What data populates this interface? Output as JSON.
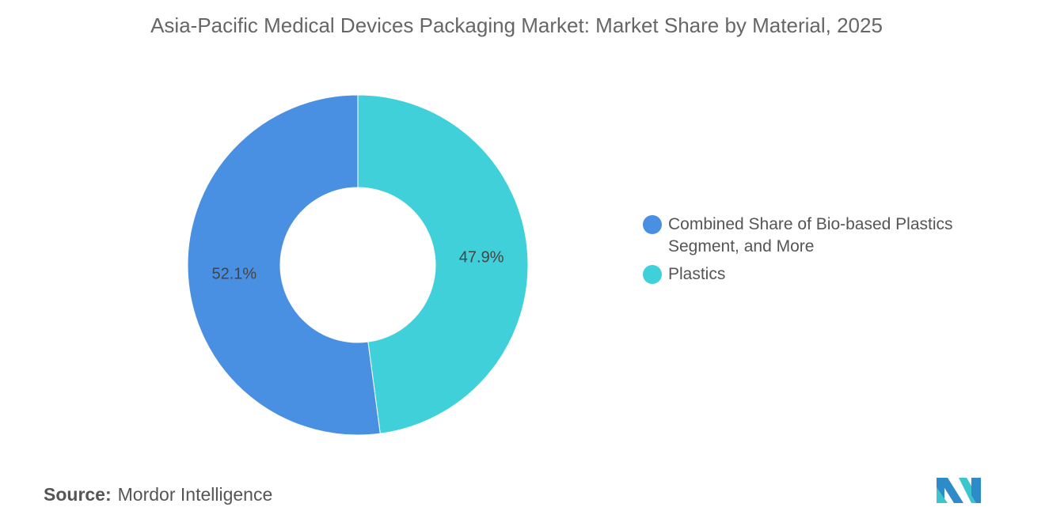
{
  "chart_data": {
    "type": "pie",
    "variant": "donut",
    "title": "Asia-Pacific Medical Devices Packaging Market: Market Share by Material, 2025",
    "series": [
      {
        "name": "Plastics",
        "value": 47.9,
        "label": "47.9%",
        "color": "#40D0DA"
      },
      {
        "name": "Combined Share of Bio-based Plastics Segment, and More",
        "value": 52.1,
        "label": "52.1%",
        "color": "#4A90E2"
      }
    ],
    "legend": {
      "placement": "right",
      "items": [
        "Combined Share of Bio-based Plastics Segment, and More",
        "Plastics"
      ]
    }
  },
  "source": {
    "label": "Source:",
    "value": "Mordor Intelligence"
  },
  "logo": "Mordor Intelligence logo"
}
